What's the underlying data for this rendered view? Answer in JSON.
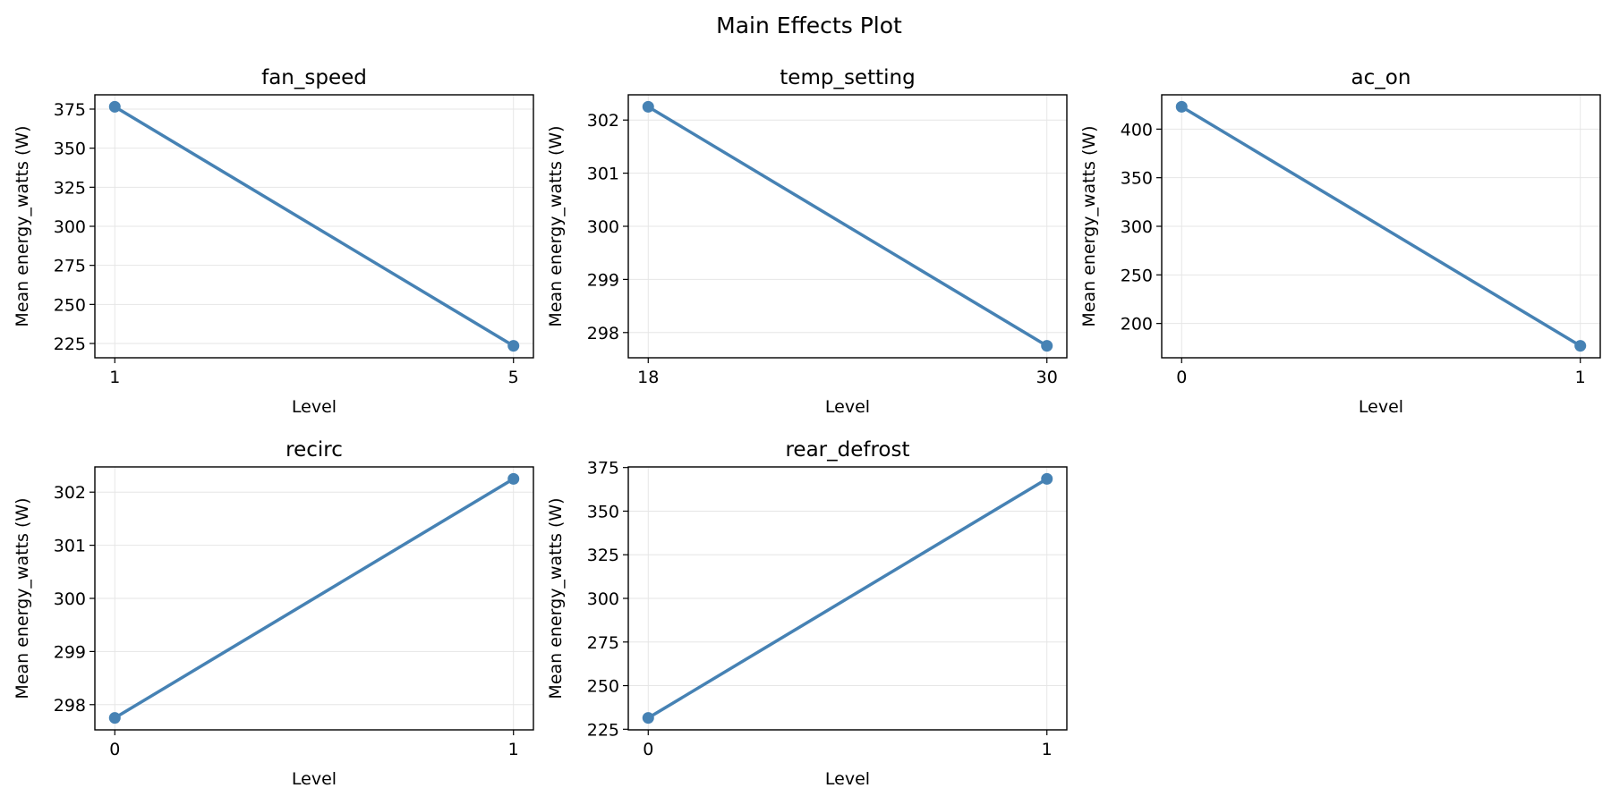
{
  "figure_title": "Main Effects Plot",
  "colors": {
    "line": "#4682b4",
    "marker": "#4682b4",
    "grid": "#e6e6e6",
    "axes": "#000000"
  },
  "chart_data": [
    {
      "type": "line",
      "title": "fan_speed",
      "xlabel": "Level",
      "ylabel": "Mean energy_watts (W)",
      "x": [
        1,
        5
      ],
      "values": [
        376.5,
        223.5
      ],
      "xticks": [
        1,
        5
      ],
      "yticks": [
        225,
        250,
        275,
        300,
        325,
        350,
        375
      ],
      "ylim": [
        215.85,
        384.15
      ],
      "grid": true
    },
    {
      "type": "line",
      "title": "temp_setting",
      "xlabel": "Level",
      "ylabel": "Mean energy_watts (W)",
      "x": [
        18,
        30
      ],
      "values": [
        302.25,
        297.75
      ],
      "xticks": [
        18,
        30
      ],
      "yticks": [
        298,
        299,
        300,
        301,
        302
      ],
      "ylim": [
        297.525,
        302.475
      ],
      "grid": true
    },
    {
      "type": "line",
      "title": "ac_on",
      "xlabel": "Level",
      "ylabel": "Mean energy_watts (W)",
      "x": [
        0,
        1
      ],
      "values": [
        423,
        177
      ],
      "xticks": [
        0,
        1
      ],
      "yticks": [
        200,
        250,
        300,
        350,
        400
      ],
      "ylim": [
        164.7,
        435.3
      ],
      "grid": true
    },
    {
      "type": "line",
      "title": "recirc",
      "xlabel": "Level",
      "ylabel": "Mean energy_watts (W)",
      "x": [
        0,
        1
      ],
      "values": [
        297.75,
        302.25
      ],
      "xticks": [
        0,
        1
      ],
      "yticks": [
        298,
        299,
        300,
        301,
        302
      ],
      "ylim": [
        297.525,
        302.475
      ],
      "grid": true
    },
    {
      "type": "line",
      "title": "rear_defrost",
      "xlabel": "Level",
      "ylabel": "Mean energy_watts (W)",
      "x": [
        0,
        1
      ],
      "values": [
        231.5,
        368.5
      ],
      "xticks": [
        0,
        1
      ],
      "yticks": [
        225,
        250,
        275,
        300,
        325,
        350,
        375
      ],
      "ylim": [
        224.65,
        375.35
      ],
      "grid": true
    }
  ]
}
